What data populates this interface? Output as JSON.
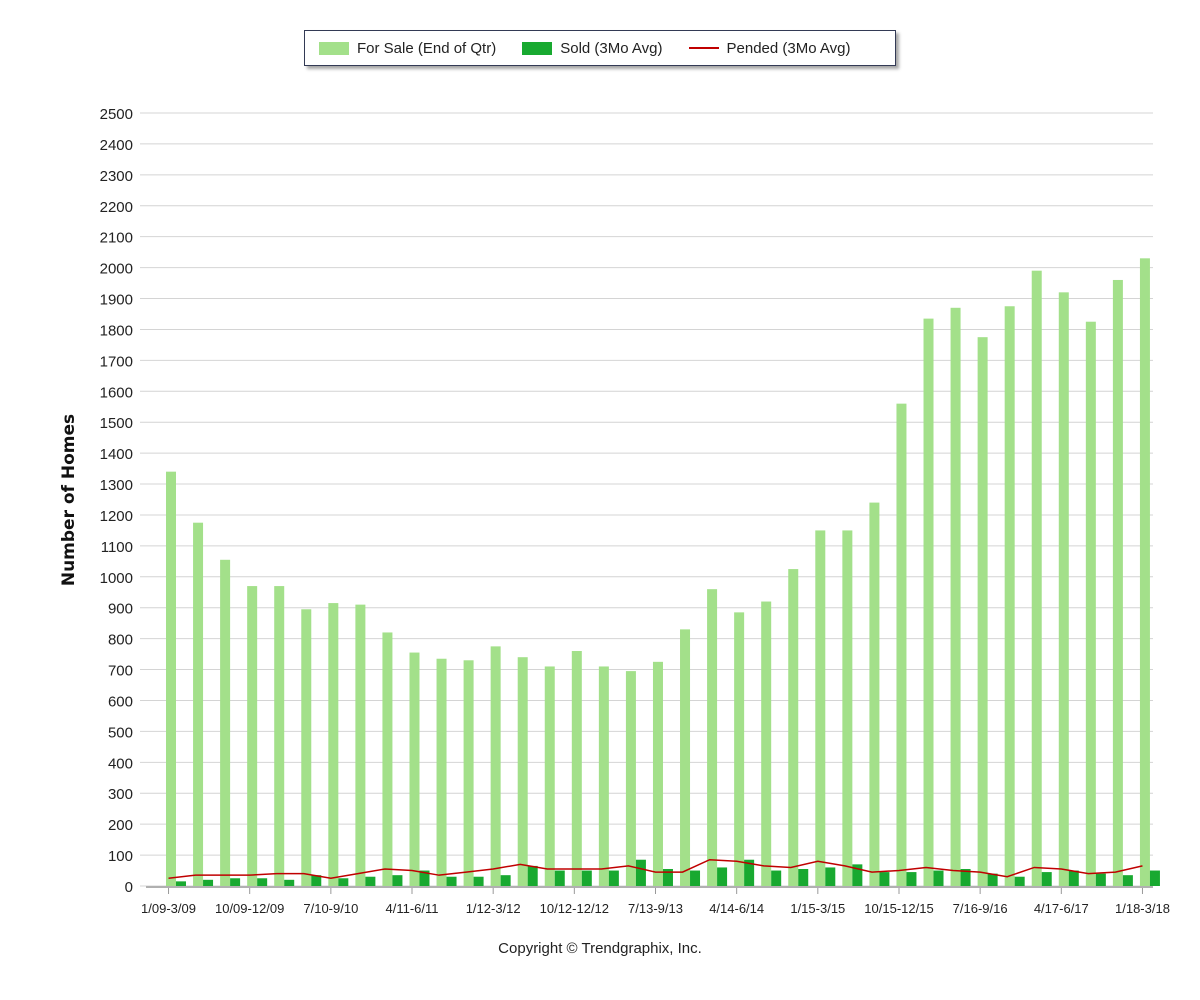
{
  "chart_data": {
    "type": "bar",
    "title": "",
    "xlabel": "",
    "ylabel": "Number of Homes",
    "ylim": [
      0,
      2500
    ],
    "ytick_step": 100,
    "grid": true,
    "legend_position": "top-center",
    "categories": [
      "1/09-3/09",
      "4/09-6/09",
      "7/09-9/09",
      "10/09-12/09",
      "1/10-3/10",
      "4/10-6/10",
      "7/10-9/10",
      "10/10-12/10",
      "1/11-3/11",
      "4/11-6/11",
      "7/11-9/11",
      "10/11-12/11",
      "1/12-3/12",
      "4/12-6/12",
      "7/12-9/12",
      "10/12-12/12",
      "1/13-3/13",
      "4/13-6/13",
      "7/13-9/13",
      "10/13-12/13",
      "1/14-3/14",
      "4/14-6/14",
      "7/14-9/14",
      "10/14-12/14",
      "1/15-3/15",
      "4/15-6/15",
      "7/15-9/15",
      "10/15-12/15",
      "1/16-3/16",
      "4/16-6/16",
      "7/16-9/16",
      "10/16-12/16",
      "1/17-3/17",
      "4/17-6/17",
      "7/17-9/17",
      "10/17-12/17",
      "1/18-3/18"
    ],
    "x_tick_labels": [
      "1/09-3/09",
      "",
      "",
      "10/09-12/09",
      "",
      "",
      "7/10-9/10",
      "",
      "",
      "4/11-6/11",
      "",
      "",
      "1/12-3/12",
      "",
      "",
      "10/12-12/12",
      "",
      "",
      "7/13-9/13",
      "",
      "",
      "4/14-6/14",
      "",
      "",
      "1/15-3/15",
      "",
      "",
      "10/15-12/15",
      "",
      "",
      "7/16-9/16",
      "",
      "",
      "4/17-6/17",
      "",
      "",
      "1/18-3/18"
    ],
    "series": [
      {
        "name": "For Sale (End of Qtr)",
        "kind": "bar",
        "color": "#a3e08a",
        "values": [
          1340,
          1175,
          1055,
          970,
          970,
          895,
          915,
          910,
          820,
          755,
          735,
          730,
          775,
          740,
          710,
          760,
          710,
          695,
          725,
          830,
          960,
          885,
          920,
          1025,
          1150,
          1150,
          1240,
          1560,
          1835,
          1870,
          1775,
          1875,
          1990,
          1920,
          1825,
          1960,
          2030
        ]
      },
      {
        "name": "Sold (3Mo Avg)",
        "kind": "bar",
        "color": "#18a930",
        "values": [
          15,
          20,
          25,
          25,
          20,
          35,
          25,
          30,
          35,
          50,
          30,
          30,
          35,
          65,
          50,
          50,
          50,
          85,
          55,
          50,
          60,
          85,
          50,
          55,
          60,
          70,
          45,
          45,
          50,
          55,
          40,
          30,
          45,
          50,
          40,
          35,
          50
        ]
      },
      {
        "name": "Pended (3Mo Avg)",
        "kind": "line",
        "color": "#c00000",
        "values": [
          25,
          35,
          35,
          35,
          40,
          40,
          25,
          40,
          55,
          50,
          35,
          45,
          55,
          70,
          55,
          55,
          55,
          65,
          45,
          45,
          85,
          80,
          65,
          60,
          80,
          65,
          45,
          50,
          60,
          50,
          45,
          30,
          60,
          55,
          40,
          45,
          65
        ]
      }
    ]
  },
  "legend": {
    "for_sale_label": "For Sale (End of Qtr)",
    "sold_label": "Sold (3Mo Avg)",
    "pended_label": "Pended (3Mo Avg)"
  },
  "footer": {
    "copyright": "Copyright © Trendgraphix, Inc."
  }
}
